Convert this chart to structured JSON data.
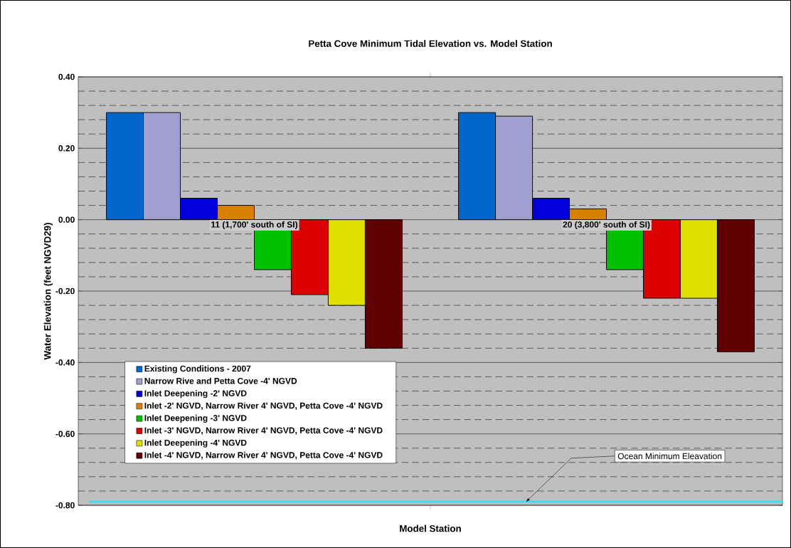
{
  "chart_data": {
    "type": "bar",
    "title": "Petta Cove Minimum Tidal Elevation vs.  Model Station",
    "xlabel": "Model Station",
    "ylabel": "Water Elevation (feet NGVD29)",
    "categories": [
      "11 (1,700' south of SI)",
      "20 (3,800' south of SI)"
    ],
    "series": [
      {
        "name": "Existing Conditions - 2007",
        "color": "#0066cc",
        "values": [
          0.3,
          0.3
        ]
      },
      {
        "name": "Narrow Rive and Petta Cove -4' NGVD",
        "color": "#a0a0d0",
        "values": [
          0.3,
          0.29
        ]
      },
      {
        "name": "Inlet Deepening -2' NGVD",
        "color": "#0000dd",
        "values": [
          0.06,
          0.06
        ]
      },
      {
        "name": "Inlet -2' NGVD, Narrow River 4' NGVD, Petta Cove -4' NGVD",
        "color": "#d88000",
        "values": [
          0.04,
          0.03
        ]
      },
      {
        "name": "Inlet Deepening -3' NGVD",
        "color": "#00c000",
        "values": [
          -0.14,
          -0.14
        ]
      },
      {
        "name": "Inlet -3' NGVD, Narrow River 4' NGVD, Petta Cove -4' NGVD",
        "color": "#dd0000",
        "values": [
          -0.21,
          -0.22
        ]
      },
      {
        "name": "Inlet Deepening -4' NGVD",
        "color": "#e0e000",
        "values": [
          -0.24,
          -0.22
        ]
      },
      {
        "name": "Inlet -4' NGVD, Narrow River 4' NGVD, Petta Cove -4' NGVD",
        "color": "#600000",
        "values": [
          -0.36,
          -0.37
        ]
      }
    ],
    "ylim": [
      -0.8,
      0.4
    ],
    "yticks": [
      {
        "value": -0.8,
        "label": "-0.80"
      },
      {
        "value": -0.6,
        "label": "-0.60"
      },
      {
        "value": -0.4,
        "label": "-0.40"
      },
      {
        "value": -0.2,
        "label": "-0.20"
      },
      {
        "value": 0.0,
        "label": "0.00"
      },
      {
        "value": 0.2,
        "label": "0.20"
      },
      {
        "value": 0.4,
        "label": "0.40"
      }
    ],
    "ref_lines": [
      {
        "axis": "y",
        "value": -0.79,
        "label": "Ocean Minimum Eleavation",
        "color": "#33e0f0"
      }
    ],
    "grid": "y",
    "legend": "bottom left"
  }
}
